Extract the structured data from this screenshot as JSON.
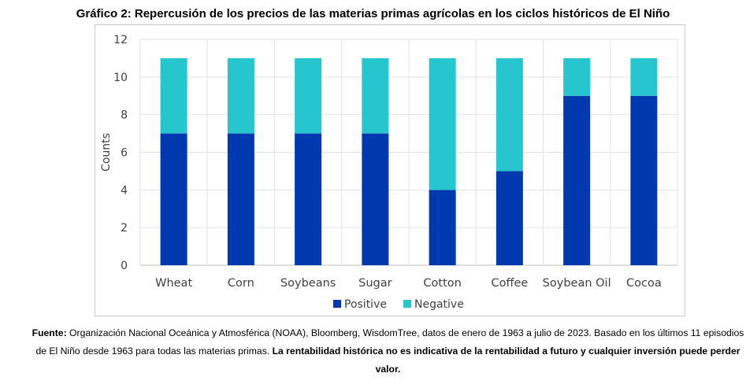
{
  "title": "Gráfico 2: Repercusión de los precios de las materias primas agrícolas en los ciclos históricos de El Niño",
  "chart_data": {
    "type": "bar",
    "stacked": true,
    "title": "Gráfico 2: Repercusión de los precios de las materias primas agrícolas en los ciclos históricos de El Niño",
    "xlabel": "",
    "ylabel": "Counts",
    "ylim": [
      0,
      12
    ],
    "yticks": [
      0,
      2,
      4,
      6,
      8,
      10,
      12
    ],
    "grid": true,
    "legend_position": "bottom",
    "categories": [
      "Wheat",
      "Corn",
      "Soybeans",
      "Sugar",
      "Cotton",
      "Coffee",
      "Soybean Oil",
      "Cocoa"
    ],
    "series": [
      {
        "name": "Positive",
        "color": "#0038B0",
        "values": [
          7,
          7,
          7,
          7,
          4,
          5,
          9,
          9
        ]
      },
      {
        "name": "Negative",
        "color": "#26C6CF",
        "values": [
          4,
          4,
          4,
          4,
          7,
          6,
          2,
          2
        ]
      }
    ]
  },
  "footer": {
    "source_label": "Fuente:",
    "source_text": " Organización Nacional Oceánica y Atmosférica (NOAA), Bloomberg, WisdomTree, datos de enero de 1963 a julio de 2023. Basado en los últimos 11 episodios de El Niño desde 1963 para todas las materias primas. ",
    "disclaimer": "La rentabilidad histórica no es indicativa de la rentabilidad a futuro y cualquier inversión puede perder valor."
  }
}
